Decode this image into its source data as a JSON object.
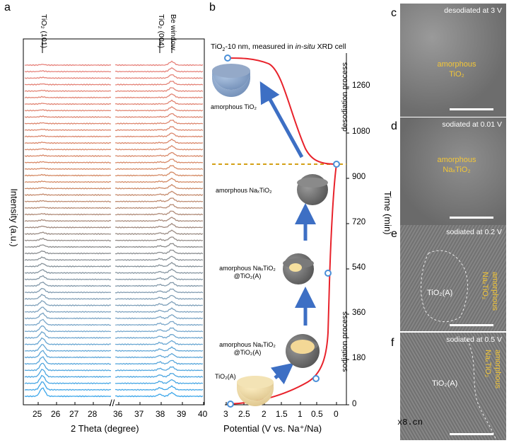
{
  "figure": {
    "panel_labels": {
      "a": "a",
      "b": "b",
      "c": "c",
      "d": "d",
      "e": "e",
      "f": "f"
    }
  },
  "panel_a": {
    "ylabel": "Intensity (a.u.)",
    "xlabel": "2 Theta (degree)",
    "peak_labels": [
      "TiO₂ (101)",
      "TiO₂ (004)",
      "Be window"
    ],
    "xticks_left": [
      "25",
      "26",
      "27",
      "28"
    ],
    "xticks_right": [
      "36",
      "37",
      "38",
      "39",
      "40"
    ],
    "axis_break": "//"
  },
  "panel_b": {
    "title": "TiO₂-10 nm, measured in in-situ XRD cell",
    "title_prefix": "TiO",
    "title_mid": "-10 nm, measured in ",
    "title_italic": "in-situ",
    "title_suffix": " XRD cell",
    "xlabel": "Potential (V vs. Na⁺/Na)",
    "ylabel": "Time (min)",
    "xticks": [
      "3",
      "2.5",
      "2",
      "1.5",
      "1",
      "0.5",
      "0"
    ],
    "yticks": [
      "0",
      "180",
      "360",
      "540",
      "720",
      "900",
      "1080",
      "1260"
    ],
    "process_upper": "desodiation process",
    "process_lower": "sodiation process",
    "particles": {
      "amorphous_tio2": "amorphous TiO₂",
      "amorphous_natio2": "amorphous NaₓTiO₂",
      "core_shell_1_line1": "amorphous NaₓTiO₂",
      "core_shell_1_line2": "@TiO₂(A)",
      "core_shell_2_line1": "amorphous NaₓTiO₂",
      "core_shell_2_line2": "@TiO₂(A)",
      "anatase": "TiO₂(A)"
    },
    "colors": {
      "curve": "#e8222b",
      "arrow": "#3d6fc4",
      "dashed": "#d4a017",
      "marker": "#4a8fd8"
    }
  },
  "panel_c": {
    "condition": "desodiated at 3 V",
    "phase_line1": "amorphous",
    "phase_line2": "TiO₂"
  },
  "panel_d": {
    "condition": "sodiated at 0.01 V",
    "phase_line1": "amorphous",
    "phase_line2": "NaₓTiO₂"
  },
  "panel_e": {
    "condition": "sodiated at 0.2 V",
    "phase_white": "TiO₂(A)",
    "phase_line1": "amorphous",
    "phase_line2": "NaₓTiO₂"
  },
  "panel_f": {
    "condition": "sodiated at 0.5 V",
    "phase_white": "TiO₂(A)",
    "phase_line1": "amorphous",
    "phase_line2": "NaₓTiO₂"
  },
  "watermark": "x8.cn"
}
